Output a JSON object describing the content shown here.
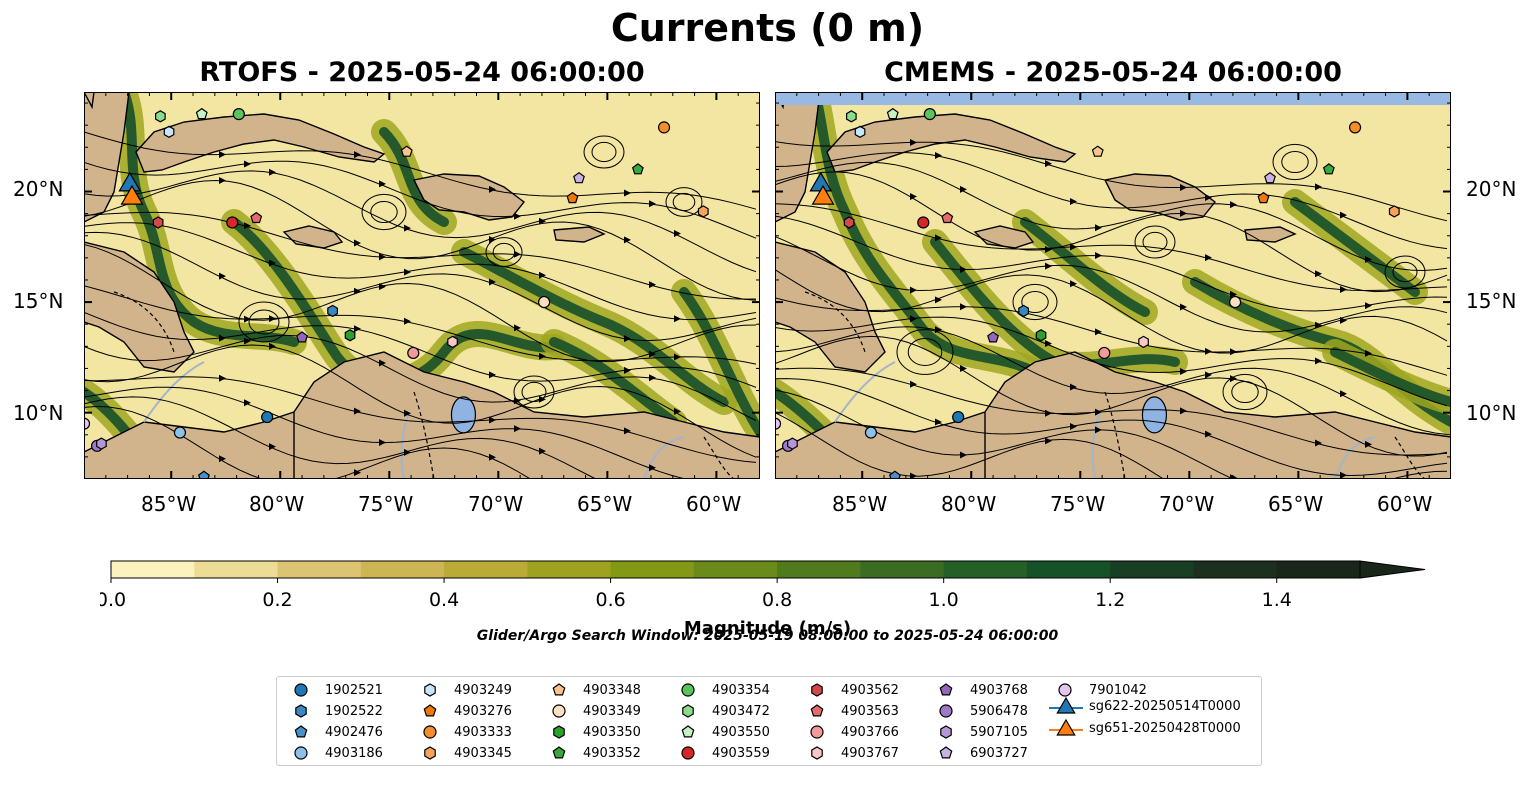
{
  "title": "Currents (0 m)",
  "panels": {
    "left_title": "RTOFS - 2025-05-24 06:00:00",
    "right_title": "CMEMS - 2025-05-24 06:00:00"
  },
  "axes": {
    "lon_ticks": [
      "85°W",
      "80°W",
      "75°W",
      "70°W",
      "65°W",
      "60°W"
    ],
    "lat_ticks": [
      "20°N",
      "15°N",
      "10°N"
    ]
  },
  "colorbar": {
    "label": "Magnitude (m/s)",
    "tick_labels": [
      "0.0",
      "0.2",
      "0.4",
      "0.6",
      "0.8",
      "1.0",
      "1.2",
      "1.4"
    ],
    "range": [
      0.0,
      1.5
    ],
    "step": 0.1,
    "extend": "max",
    "colors": [
      "#fbf3bd",
      "#eddc96",
      "#dcc473",
      "#ccb552",
      "#b9ab35",
      "#9ea21f",
      "#839916",
      "#6a8b19",
      "#4f7b1d",
      "#3a6d22",
      "#265f27",
      "#165228",
      "#1a3e24",
      "#1d3020",
      "#1a2619"
    ]
  },
  "search_window": "Glider/Argo Search Window: 2025-05-19 08:00:00 to 2025-05-24 06:00:00",
  "colors": {
    "land": "#d2b48c",
    "lake": "#8fb4e3",
    "river": "#a2b5c9",
    "cmems_nodata": "#97b9e3",
    "flow_light": "#f3e6a2",
    "flow_mid": "#9fa620",
    "flow_dark": "#16502a"
  },
  "chart_data": {
    "type": "map",
    "title": "Currents (0 m)",
    "lon_range": [
      -89,
      -58
    ],
    "lat_range": [
      7,
      24.5
    ],
    "legend_position": "bottom-center",
    "floats": [
      {
        "id": "1902521",
        "lon": -80.6,
        "lat": 9.8,
        "marker": "circle",
        "color": "#1f77b4"
      },
      {
        "id": "1902522",
        "lon": -77.6,
        "lat": 14.6,
        "marker": "hexagon",
        "color": "#3a87c2"
      },
      {
        "id": "4902476",
        "lon": -83.5,
        "lat": 7.1,
        "marker": "pentagon",
        "color": "#4a90c8"
      },
      {
        "id": "4903186",
        "lon": -84.6,
        "lat": 9.1,
        "marker": "circle",
        "color": "#8ec1e8"
      },
      {
        "id": "4903249",
        "lon": -85.1,
        "lat": 22.7,
        "marker": "hexagon",
        "color": "#c8e6fb"
      },
      {
        "id": "4903276",
        "lon": -66.6,
        "lat": 19.7,
        "marker": "pentagon",
        "color": "#f0780a"
      },
      {
        "id": "4903333",
        "lon": -62.4,
        "lat": 22.9,
        "marker": "circle",
        "color": "#f28e2b"
      },
      {
        "id": "4903345",
        "lon": -60.6,
        "lat": 19.1,
        "marker": "hexagon",
        "color": "#f7a35c"
      },
      {
        "id": "4903348",
        "lon": -74.2,
        "lat": 21.8,
        "marker": "pentagon",
        "color": "#fbc48e"
      },
      {
        "id": "4903349",
        "lon": -67.9,
        "lat": 15.0,
        "marker": "circle",
        "color": "#fde0c2"
      },
      {
        "id": "4903350",
        "lon": -76.8,
        "lat": 13.5,
        "marker": "hexagon",
        "color": "#2ca02c"
      },
      {
        "id": "4903352",
        "lon": -63.6,
        "lat": 21.0,
        "marker": "pentagon",
        "color": "#3aa83a"
      },
      {
        "id": "4903354",
        "lon": -81.9,
        "lat": 23.5,
        "marker": "circle",
        "color": "#5cc45c"
      },
      {
        "id": "4903472",
        "lon": -85.5,
        "lat": 23.4,
        "marker": "hexagon",
        "color": "#8ddc8d"
      },
      {
        "id": "4903550",
        "lon": -83.6,
        "lat": 23.5,
        "marker": "pentagon",
        "color": "#c4f2c4"
      },
      {
        "id": "4903559",
        "lon": -82.2,
        "lat": 18.6,
        "marker": "circle",
        "color": "#d62728"
      },
      {
        "id": "4903562",
        "lon": -85.6,
        "lat": 18.6,
        "marker": "hexagon",
        "color": "#d44a4a"
      },
      {
        "id": "4903563",
        "lon": -81.1,
        "lat": 18.8,
        "marker": "pentagon",
        "color": "#e56b6b"
      },
      {
        "id": "4903766",
        "lon": -73.9,
        "lat": 12.7,
        "marker": "circle",
        "color": "#f29a9a"
      },
      {
        "id": "4903767",
        "lon": -72.1,
        "lat": 13.2,
        "marker": "hexagon",
        "color": "#fbc6c6"
      },
      {
        "id": "4903768",
        "lon": -79.0,
        "lat": 13.4,
        "marker": "pentagon",
        "color": "#9467bd"
      },
      {
        "id": "5906478",
        "lon": -88.4,
        "lat": 8.5,
        "marker": "circle",
        "color": "#9d79c9"
      },
      {
        "id": "5907105",
        "lon": -88.2,
        "lat": 8.6,
        "marker": "hexagon",
        "color": "#b397d7"
      },
      {
        "id": "6903727",
        "lon": -66.3,
        "lat": 20.6,
        "marker": "pentagon",
        "color": "#c9b3e6"
      },
      {
        "id": "7901042",
        "lon": -89.0,
        "lat": 9.5,
        "marker": "circle",
        "color": "#e4c6f0"
      }
    ],
    "gliders": [
      {
        "id": "sg622-20250514T0000",
        "lon": -86.9,
        "lat": 20.3,
        "color": "#1f77b4"
      },
      {
        "id": "sg651-20250428T0000",
        "lon": -86.8,
        "lat": 19.7,
        "color": "#ff7f0e"
      }
    ]
  },
  "legend": {
    "items": [
      {
        "label": "1902521",
        "marker": "circle",
        "color": "#1f77b4"
      },
      {
        "label": "1902522",
        "marker": "hexagon",
        "color": "#3a87c2"
      },
      {
        "label": "4902476",
        "marker": "pentagon",
        "color": "#4a90c8"
      },
      {
        "label": "4903186",
        "marker": "circle",
        "color": "#8ec1e8"
      },
      {
        "label": "4903249",
        "marker": "hexagon",
        "color": "#c8e6fb"
      },
      {
        "label": "4903276",
        "marker": "pentagon",
        "color": "#f0780a"
      },
      {
        "label": "4903333",
        "marker": "circle",
        "color": "#f28e2b"
      },
      {
        "label": "4903345",
        "marker": "hexagon",
        "color": "#f7a35c"
      },
      {
        "label": "4903348",
        "marker": "pentagon",
        "color": "#fbc48e"
      },
      {
        "label": "4903349",
        "marker": "circle",
        "color": "#fde0c2"
      },
      {
        "label": "4903350",
        "marker": "hexagon",
        "color": "#2ca02c"
      },
      {
        "label": "4903352",
        "marker": "pentagon",
        "color": "#3aa83a"
      },
      {
        "label": "4903354",
        "marker": "circle",
        "color": "#5cc45c"
      },
      {
        "label": "4903472",
        "marker": "hexagon",
        "color": "#8ddc8d"
      },
      {
        "label": "4903550",
        "marker": "pentagon",
        "color": "#c4f2c4"
      },
      {
        "label": "4903559",
        "marker": "circle",
        "color": "#d62728"
      },
      {
        "label": "4903562",
        "marker": "hexagon",
        "color": "#d44a4a"
      },
      {
        "label": "4903563",
        "marker": "pentagon",
        "color": "#e56b6b"
      },
      {
        "label": "4903766",
        "marker": "circle",
        "color": "#f29a9a"
      },
      {
        "label": "4903767",
        "marker": "hexagon",
        "color": "#fbc6c6"
      },
      {
        "label": "4903768",
        "marker": "pentagon",
        "color": "#9467bd"
      },
      {
        "label": "5906478",
        "marker": "circle",
        "color": "#9d79c9"
      },
      {
        "label": "5907105",
        "marker": "hexagon",
        "color": "#b397d7"
      },
      {
        "label": "6903727",
        "marker": "pentagon",
        "color": "#c9b3e6"
      },
      {
        "label": "7901042",
        "marker": "circle",
        "color": "#e4c6f0"
      },
      {
        "label": "sg622-20250514T0000",
        "marker": "triangle",
        "color": "#1f77b4"
      },
      {
        "label": "sg651-20250428T0000",
        "marker": "triangle",
        "color": "#ff7f0e"
      }
    ]
  }
}
